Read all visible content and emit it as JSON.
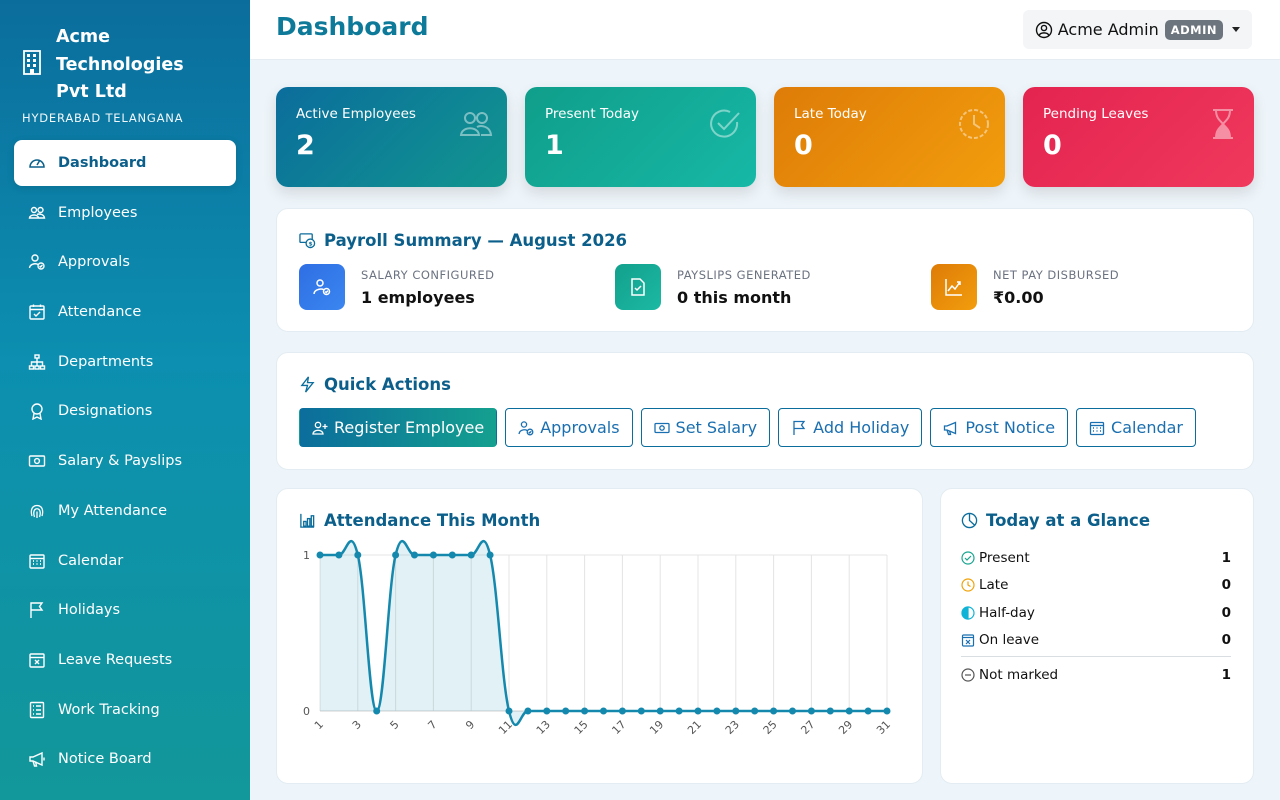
{
  "brand": {
    "name_line1": "Acme",
    "name_line2": "Technologies",
    "name_line3": "Pvt Ltd",
    "subtitle": "HYDERABAD TELANGANA"
  },
  "sidebar": {
    "items": [
      {
        "label": "Dashboard",
        "icon": "gauge-icon"
      },
      {
        "label": "Employees",
        "icon": "people-icon"
      },
      {
        "label": "Approvals",
        "icon": "person-check-icon"
      },
      {
        "label": "Attendance",
        "icon": "calendar-check-icon"
      },
      {
        "label": "Departments",
        "icon": "diagram-icon"
      },
      {
        "label": "Designations",
        "icon": "award-icon"
      },
      {
        "label": "Salary & Payslips",
        "icon": "cash-icon"
      },
      {
        "label": "My Attendance",
        "icon": "fingerprint-icon"
      },
      {
        "label": "Calendar",
        "icon": "calendar-grid-icon"
      },
      {
        "label": "Holidays",
        "icon": "flag-icon"
      },
      {
        "label": "Leave Requests",
        "icon": "calendar-x-icon"
      },
      {
        "label": "Work Tracking",
        "icon": "list-check-icon"
      },
      {
        "label": "Notice Board",
        "icon": "megaphone-icon"
      }
    ]
  },
  "header": {
    "title": "Dashboard",
    "user_name": "Acme Admin",
    "role_badge": "ADMIN"
  },
  "stats": [
    {
      "label": "Active Employees",
      "value": "2",
      "icon": "people-icon",
      "color_from": "#0b6d9c",
      "color_to": "#11968f"
    },
    {
      "label": "Present Today",
      "value": "1",
      "icon": "check-circle-icon",
      "color_from": "#0f9e8a",
      "color_to": "#17b8a6"
    },
    {
      "label": "Late Today",
      "value": "0",
      "icon": "clock-icon",
      "color_from": "#de7c08",
      "color_to": "#f29d0d"
    },
    {
      "label": "Pending Leaves",
      "value": "0",
      "icon": "hourglass-icon",
      "color_from": "#e3244f",
      "color_to": "#f0385c"
    }
  ],
  "payroll": {
    "title": "Payroll Summary — August 2026",
    "items": [
      {
        "label": "SALARY CONFIGURED",
        "value": "1 employees",
        "icon": "person-gear-icon",
        "color": "#2f6fe4"
      },
      {
        "label": "PAYSLIPS GENERATED",
        "value": "0 this month",
        "icon": "file-check-icon",
        "color": "#17a58f"
      },
      {
        "label": "NET PAY DISBURSED",
        "value": "₹0.00",
        "icon": "graph-up-icon",
        "color": "#e8870b"
      }
    ]
  },
  "quick_actions": {
    "title": "Quick Actions",
    "buttons": [
      {
        "label": "Register Employee",
        "icon": "person-plus-icon"
      },
      {
        "label": "Approvals",
        "icon": "person-check-icon"
      },
      {
        "label": "Set Salary",
        "icon": "cash-icon"
      },
      {
        "label": "Add Holiday",
        "icon": "flag-icon"
      },
      {
        "label": "Post Notice",
        "icon": "megaphone-icon"
      },
      {
        "label": "Calendar",
        "icon": "calendar-grid-icon"
      }
    ]
  },
  "attendance_chart": {
    "title": "Attendance This Month",
    "chart_data": {
      "type": "area",
      "x": [
        1,
        2,
        3,
        4,
        5,
        6,
        7,
        8,
        9,
        10,
        11,
        12,
        13,
        14,
        15,
        16,
        17,
        18,
        19,
        20,
        21,
        22,
        23,
        24,
        25,
        26,
        27,
        28,
        29,
        30,
        31
      ],
      "x_tick_labels": [
        "1",
        "3",
        "5",
        "7",
        "9",
        "11",
        "13",
        "15",
        "17",
        "19",
        "21",
        "23",
        "25",
        "27",
        "29",
        "31"
      ],
      "series": [
        {
          "values": [
            1,
            1,
            1,
            0,
            1,
            1,
            1,
            1,
            1,
            1,
            0,
            0,
            0,
            0,
            0,
            0,
            0,
            0,
            0,
            0,
            0,
            0,
            0,
            0,
            0,
            0,
            0,
            0,
            0,
            0,
            0
          ]
        }
      ],
      "ylim": [
        0,
        1
      ],
      "y_tick_labels": [
        "0",
        "1"
      ],
      "grid": "vertical",
      "color": "#1489ad"
    }
  },
  "glance": {
    "title": "Today at a Glance",
    "rows": [
      {
        "label": "Present",
        "value": "1",
        "icon": "check-circle-icon",
        "color": "#17a58f"
      },
      {
        "label": "Late",
        "value": "0",
        "icon": "clock-icon",
        "color": "#f0a30a"
      },
      {
        "label": "Half-day",
        "value": "0",
        "icon": "half-circle-icon",
        "color": "#0fb3d6"
      },
      {
        "label": "On leave",
        "value": "0",
        "icon": "calendar-x-icon",
        "color": "#1a6fb0"
      }
    ],
    "not_marked": {
      "label": "Not marked",
      "value": "1",
      "icon": "dash-circle-icon",
      "color": "#555"
    }
  }
}
